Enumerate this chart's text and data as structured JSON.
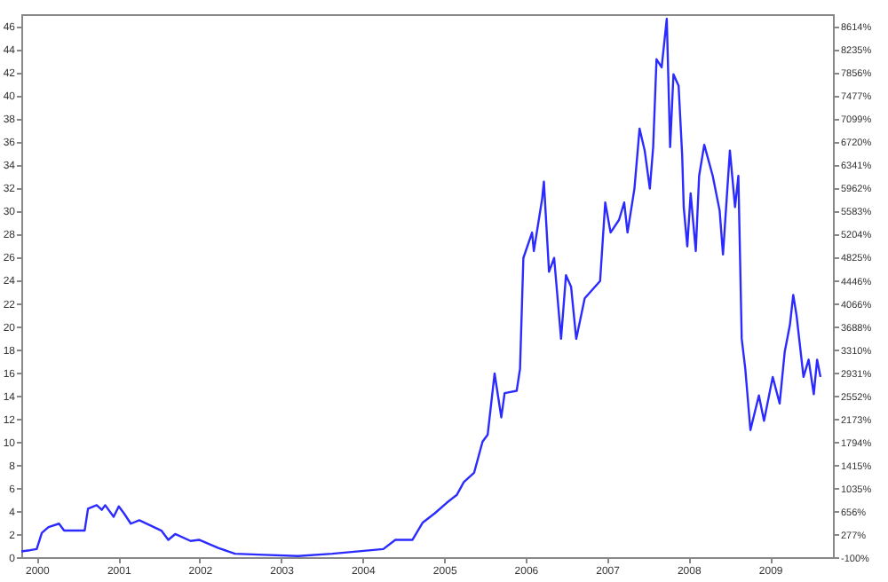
{
  "chart_data": {
    "type": "line",
    "x": [
      "1999-10-24",
      "1999-12-01",
      "2000-01-01",
      "2000-01-24",
      "2000-02-23",
      "2000-04-10",
      "2000-05-03",
      "2000-08-03",
      "2000-08-18",
      "2000-09-26",
      "2000-10-19",
      "2000-11-03",
      "2000-12-11",
      "2001-01-03",
      "2001-01-26",
      "2001-02-26",
      "2001-04-05",
      "2001-07-13",
      "2001-08-13",
      "2001-09-13",
      "2001-11-21",
      "2001-12-29",
      "2002-03-25",
      "2002-06-08",
      "2002-10-17",
      "2003-03-18",
      "2003-08-18",
      "2004-04-03",
      "2004-05-27",
      "2004-08-12",
      "2004-09-27",
      "2004-11-20",
      "2005-01-12",
      "2005-02-27",
      "2005-03-30",
      "2005-05-15",
      "2005-06-22",
      "2005-07-15",
      "2005-08-15",
      "2005-09-14",
      "2005-09-29",
      "2005-11-22",
      "2005-12-07",
      "2005-12-22",
      "2006-01-30",
      "2006-02-07",
      "2006-03-16",
      "2006-03-24",
      "2006-04-16",
      "2006-05-09",
      "2006-06-09",
      "2006-07-01",
      "2006-07-24",
      "2006-08-16",
      "2006-09-23",
      "2006-12-01",
      "2006-12-24",
      "2007-01-17",
      "2007-02-24",
      "2007-03-19",
      "2007-04-03",
      "2007-05-04",
      "2007-05-27",
      "2007-06-19",
      "2007-07-12",
      "2007-07-27",
      "2007-08-11",
      "2007-09-03",
      "2007-09-26",
      "2007-10-11",
      "2007-10-26",
      "2007-11-18",
      "2007-12-04",
      "2007-12-11",
      "2007-12-27",
      "2008-01-11",
      "2008-02-03",
      "2008-02-18",
      "2008-03-12",
      "2008-04-19",
      "2008-05-20",
      "2008-06-04",
      "2008-07-05",
      "2008-07-28",
      "2008-08-12",
      "2008-08-27",
      "2008-09-12",
      "2008-10-05",
      "2008-11-12",
      "2008-12-05",
      "2009-01-13",
      "2009-02-13",
      "2009-03-08",
      "2009-03-31",
      "2009-04-15",
      "2009-04-30",
      "2009-05-31",
      "2009-06-23",
      "2009-07-16",
      "2009-07-31",
      "2009-08-15"
    ],
    "series": [
      {
        "color": "#2b2bff",
        "values": [
          0.5,
          0.6,
          0.7,
          2.1,
          2.6,
          2.9,
          2.3,
          2.3,
          4.2,
          4.5,
          4.1,
          4.5,
          3.5,
          4.4,
          3.8,
          2.9,
          3.2,
          2.3,
          1.5,
          2.0,
          1.4,
          1.5,
          0.8,
          0.3,
          0.2,
          0.1,
          0.3,
          0.7,
          1.5,
          1.5,
          3.0,
          3.8,
          4.7,
          5.4,
          6.5,
          7.3,
          10.0,
          10.6,
          15.9,
          12.1,
          14.2,
          14.4,
          16.3,
          25.9,
          28.1,
          26.5,
          31.0,
          32.5,
          24.7,
          25.9,
          18.9,
          24.4,
          23.4,
          18.9,
          22.4,
          23.9,
          30.7,
          28.1,
          29.2,
          30.7,
          28.1,
          31.9,
          37.1,
          35.2,
          31.9,
          35.5,
          43.1,
          42.4,
          46.6,
          35.5,
          41.8,
          40.8,
          34.8,
          30.3,
          26.9,
          31.5,
          26.5,
          33.0,
          35.7,
          33.0,
          30.0,
          26.2,
          35.2,
          30.3,
          33.0,
          18.9,
          16.3,
          11.0,
          14.0,
          11.8,
          15.6,
          13.3,
          17.8,
          20.1,
          22.7,
          20.9,
          15.6,
          17.1,
          14.1,
          17.1,
          15.6
        ]
      }
    ],
    "xlim": [
      "1999-10-24",
      "2009-10-10"
    ],
    "xticks": [
      "2000",
      "2001",
      "2002",
      "2003",
      "2004",
      "2005",
      "2006",
      "2007",
      "2008",
      "2009"
    ],
    "ylim": [
      0,
      47
    ],
    "yticks": [
      0,
      2,
      4,
      6,
      8,
      10,
      12,
      14,
      16,
      18,
      20,
      22,
      24,
      26,
      28,
      30,
      32,
      34,
      36,
      38,
      40,
      42,
      44,
      46
    ],
    "y2lim": [
      -100,
      8804
    ],
    "y2ticks": [
      {
        "value": -100,
        "label": "-100%"
      },
      {
        "value": 277,
        "label": "277%"
      },
      {
        "value": 656,
        "label": "656%"
      },
      {
        "value": 1035,
        "label": "1035%"
      },
      {
        "value": 1415,
        "label": "1415%"
      },
      {
        "value": 1794,
        "label": "1794%"
      },
      {
        "value": 2173,
        "label": "2173%"
      },
      {
        "value": 2552,
        "label": "2552%"
      },
      {
        "value": 2931,
        "label": "2931%"
      },
      {
        "value": 3310,
        "label": "3310%"
      },
      {
        "value": 3688,
        "label": "3688%"
      },
      {
        "value": 4066,
        "label": "4066%"
      },
      {
        "value": 4446,
        "label": "4446%"
      },
      {
        "value": 4825,
        "label": "4825%"
      },
      {
        "value": 5204,
        "label": "5204%"
      },
      {
        "value": 5583,
        "label": "5583%"
      },
      {
        "value": 5962,
        "label": "5962%"
      },
      {
        "value": 6341,
        "label": "6341%"
      },
      {
        "value": 6720,
        "label": "6720%"
      },
      {
        "value": 7099,
        "label": "7099%"
      },
      {
        "value": 7477,
        "label": "7477%"
      },
      {
        "value": 7856,
        "label": "7856%"
      },
      {
        "value": 8235,
        "label": "8235%"
      },
      {
        "value": 8614,
        "label": "8614%"
      }
    ]
  }
}
